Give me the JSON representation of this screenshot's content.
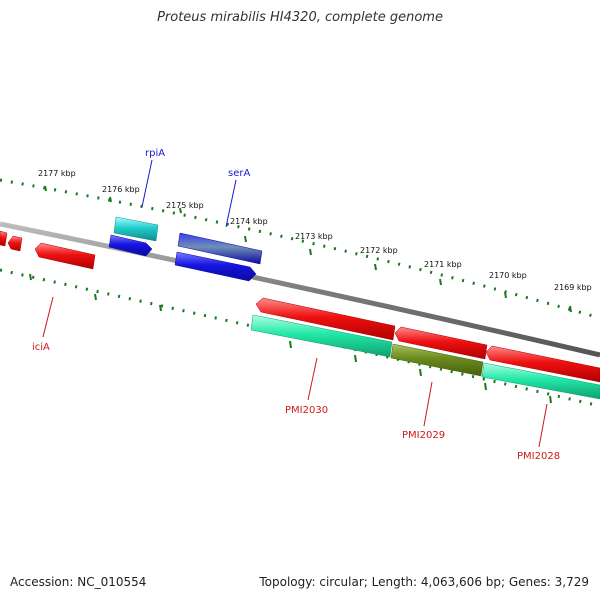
{
  "title": "Proteus mirabilis HI4320, complete genome",
  "footer": {
    "accession": "Accession: NC_010554",
    "summary": "Topology: circular; Length: 4,063,606 bp; Genes: 3,729"
  },
  "colors": {
    "backbone": "#7c7c7c",
    "tick_green": "#1a7a1a",
    "label_blue": "#1a1ad0",
    "label_red": "#d01a1a",
    "gene_red": "#ee1111",
    "gene_blue": "#1515e0",
    "gene_cyan": "#22cccc",
    "gene_teal": "#22e8a8",
    "gene_olive": "#6b8a1e"
  },
  "outer_ruler": [
    {
      "label": "2177 kbp"
    },
    {
      "label": "2176 kbp"
    },
    {
      "label": "2175 kbp"
    },
    {
      "label": "2174 kbp"
    },
    {
      "label": "2173 kbp"
    },
    {
      "label": "2172 kbp"
    },
    {
      "label": "2171 kbp"
    },
    {
      "label": "2170 kbp"
    },
    {
      "label": "2169 kbp"
    }
  ],
  "gene_labels": [
    {
      "name": "rpiA",
      "color": "blue"
    },
    {
      "name": "serA",
      "color": "blue"
    },
    {
      "name": "iciA",
      "color": "red"
    },
    {
      "name": "PMI2030",
      "color": "red"
    },
    {
      "name": "PMI2029",
      "color": "red"
    },
    {
      "name": "PMI2028",
      "color": "red"
    }
  ]
}
